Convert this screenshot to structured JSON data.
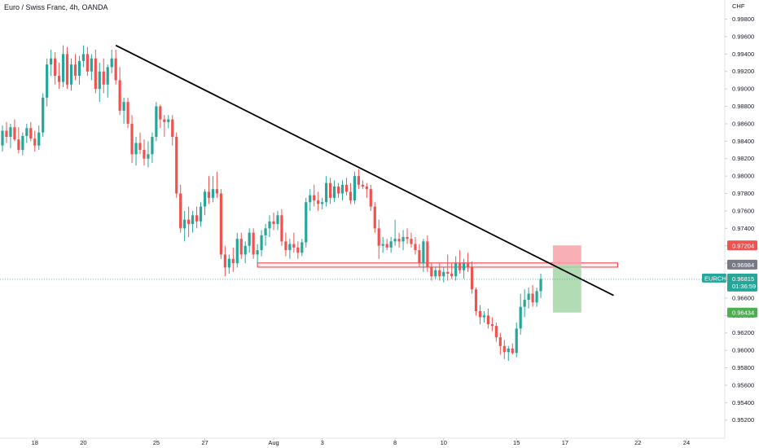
{
  "header": {
    "title": "Euro / Swiss Franc, 4h, OANDA"
  },
  "colors": {
    "up": "#26a69a",
    "down": "#ef5350",
    "trendline": "#000000",
    "zone": "#f23645",
    "stop": "#f7a1a8",
    "target": "#a5d6a7",
    "current": "#26a69a",
    "entry": "#787b86"
  },
  "chart_data": {
    "type": "candlestick",
    "title": "Euro / Swiss Franc, 4h, OANDA",
    "currency": "CHF",
    "symbol": "EURCHF",
    "ylim": [
      0.951,
      1.0002
    ],
    "xlim": [
      0,
      180
    ],
    "y_ticks": [
      "0.99800",
      "0.99600",
      "0.99400",
      "0.99200",
      "0.99000",
      "0.98800",
      "0.98600",
      "0.98400",
      "0.98200",
      "0.98000",
      "0.97800",
      "0.97600",
      "0.97400",
      "0.97200",
      "0.97000",
      "0.96800",
      "0.96600",
      "0.96400",
      "0.96200",
      "0.96000",
      "0.95800",
      "0.95600",
      "0.95400",
      "0.95200"
    ],
    "x_ticks": [
      {
        "label": "18",
        "x": 8
      },
      {
        "label": "20",
        "x": 20
      },
      {
        "label": "25",
        "x": 38
      },
      {
        "label": "27",
        "x": 50
      },
      {
        "label": "Aug",
        "x": 67
      },
      {
        "label": "3",
        "x": 79
      },
      {
        "label": "8",
        "x": 97
      },
      {
        "label": "10",
        "x": 109
      },
      {
        "label": "15",
        "x": 127
      },
      {
        "label": "17",
        "x": 139
      },
      {
        "label": "22",
        "x": 157
      },
      {
        "label": "24",
        "x": 169
      }
    ],
    "candles": [
      [
        0,
        0.9835,
        0.9858,
        0.9828,
        0.9852
      ],
      [
        1,
        0.9852,
        0.9862,
        0.9838,
        0.9845
      ],
      [
        2,
        0.9845,
        0.986,
        0.9832,
        0.9856
      ],
      [
        3,
        0.9856,
        0.9865,
        0.984,
        0.9842
      ],
      [
        4,
        0.9842,
        0.9856,
        0.9826,
        0.983
      ],
      [
        5,
        0.983,
        0.985,
        0.9824,
        0.9846
      ],
      [
        6,
        0.9846,
        0.986,
        0.9838,
        0.9855
      ],
      [
        7,
        0.9855,
        0.9862,
        0.984,
        0.9843
      ],
      [
        8,
        0.9843,
        0.9852,
        0.9828,
        0.9835
      ],
      [
        9,
        0.9835,
        0.9858,
        0.983,
        0.985
      ],
      [
        10,
        0.985,
        0.9895,
        0.9845,
        0.989
      ],
      [
        11,
        0.989,
        0.9935,
        0.988,
        0.9928
      ],
      [
        12,
        0.9928,
        0.9945,
        0.9915,
        0.9935
      ],
      [
        13,
        0.9935,
        0.9942,
        0.9905,
        0.9915
      ],
      [
        14,
        0.9915,
        0.993,
        0.99,
        0.9908
      ],
      [
        15,
        0.9908,
        0.995,
        0.9902,
        0.994
      ],
      [
        16,
        0.994,
        0.9948,
        0.99,
        0.9905
      ],
      [
        17,
        0.9905,
        0.9935,
        0.9898,
        0.9928
      ],
      [
        18,
        0.9928,
        0.994,
        0.991,
        0.9915
      ],
      [
        19,
        0.9915,
        0.9938,
        0.9905,
        0.9932
      ],
      [
        20,
        0.9932,
        0.995,
        0.9925,
        0.994
      ],
      [
        21,
        0.994,
        0.9948,
        0.9915,
        0.992
      ],
      [
        22,
        0.992,
        0.994,
        0.991,
        0.9935
      ],
      [
        23,
        0.9935,
        0.9945,
        0.9895,
        0.99
      ],
      [
        24,
        0.99,
        0.993,
        0.9885,
        0.992
      ],
      [
        25,
        0.992,
        0.9935,
        0.9895,
        0.9905
      ],
      [
        26,
        0.9905,
        0.9928,
        0.989,
        0.9925
      ],
      [
        27,
        0.9925,
        0.9945,
        0.9918,
        0.9935
      ],
      [
        28,
        0.9935,
        0.9945,
        0.9905,
        0.991
      ],
      [
        29,
        0.991,
        0.9925,
        0.987,
        0.9875
      ],
      [
        30,
        0.9875,
        0.989,
        0.986,
        0.9885
      ],
      [
        31,
        0.9885,
        0.989,
        0.9855,
        0.986
      ],
      [
        32,
        0.986,
        0.987,
        0.9815,
        0.9825
      ],
      [
        33,
        0.9825,
        0.9845,
        0.9812,
        0.9838
      ],
      [
        34,
        0.9838,
        0.985,
        0.9825,
        0.983
      ],
      [
        35,
        0.983,
        0.9842,
        0.9812,
        0.982
      ],
      [
        36,
        0.982,
        0.984,
        0.981,
        0.9825
      ],
      [
        37,
        0.9825,
        0.985,
        0.9815,
        0.9845
      ],
      [
        38,
        0.9845,
        0.9885,
        0.984,
        0.988
      ],
      [
        39,
        0.988,
        0.9882,
        0.9855,
        0.9865
      ],
      [
        40,
        0.9865,
        0.987,
        0.9845,
        0.9862
      ],
      [
        41,
        0.9862,
        0.987,
        0.9855,
        0.9865
      ],
      [
        42,
        0.9865,
        0.987,
        0.9835,
        0.9845
      ],
      [
        43,
        0.9845,
        0.985,
        0.9775,
        0.978
      ],
      [
        44,
        0.978,
        0.979,
        0.9735,
        0.974
      ],
      [
        45,
        0.974,
        0.976,
        0.9725,
        0.975
      ],
      [
        46,
        0.975,
        0.9765,
        0.973,
        0.9745
      ],
      [
        47,
        0.9745,
        0.976,
        0.9735,
        0.9755
      ],
      [
        48,
        0.9755,
        0.9765,
        0.974,
        0.9748
      ],
      [
        49,
        0.9748,
        0.977,
        0.9742,
        0.9765
      ],
      [
        50,
        0.9765,
        0.9785,
        0.9755,
        0.9782
      ],
      [
        51,
        0.9782,
        0.98,
        0.9768,
        0.9775
      ],
      [
        52,
        0.9775,
        0.98,
        0.977,
        0.9785
      ],
      [
        53,
        0.9785,
        0.9805,
        0.9775,
        0.978
      ],
      [
        54,
        0.978,
        0.9785,
        0.9705,
        0.971
      ],
      [
        55,
        0.971,
        0.972,
        0.9685,
        0.9695
      ],
      [
        56,
        0.9695,
        0.971,
        0.9688,
        0.9705
      ],
      [
        57,
        0.9705,
        0.9718,
        0.969,
        0.97
      ],
      [
        58,
        0.97,
        0.9735,
        0.9695,
        0.9728
      ],
      [
        59,
        0.9728,
        0.9735,
        0.9705,
        0.971
      ],
      [
        60,
        0.971,
        0.9725,
        0.97,
        0.972
      ],
      [
        61,
        0.972,
        0.974,
        0.9712,
        0.9735
      ],
      [
        62,
        0.9735,
        0.974,
        0.9705,
        0.971
      ],
      [
        63,
        0.971,
        0.9722,
        0.97,
        0.9715
      ],
      [
        64,
        0.9715,
        0.9738,
        0.9708,
        0.9732
      ],
      [
        65,
        0.9732,
        0.9745,
        0.972,
        0.974
      ],
      [
        66,
        0.974,
        0.9755,
        0.973,
        0.9748
      ],
      [
        67,
        0.9748,
        0.9758,
        0.9738,
        0.9745
      ],
      [
        68,
        0.9745,
        0.976,
        0.9738,
        0.9755
      ],
      [
        69,
        0.9755,
        0.9762,
        0.972,
        0.9725
      ],
      [
        70,
        0.9725,
        0.9735,
        0.9708,
        0.9715
      ],
      [
        71,
        0.9715,
        0.9728,
        0.9705,
        0.9722
      ],
      [
        72,
        0.9722,
        0.9735,
        0.9712,
        0.9718
      ],
      [
        73,
        0.9718,
        0.9725,
        0.9705,
        0.9712
      ],
      [
        74,
        0.9712,
        0.9728,
        0.9708,
        0.9724
      ],
      [
        75,
        0.9724,
        0.9775,
        0.9718,
        0.977
      ],
      [
        76,
        0.977,
        0.9785,
        0.976,
        0.9778
      ],
      [
        77,
        0.9778,
        0.979,
        0.9765,
        0.9772
      ],
      [
        78,
        0.9772,
        0.9782,
        0.976,
        0.9768
      ],
      [
        79,
        0.9768,
        0.9775,
        0.9762,
        0.977
      ],
      [
        80,
        0.977,
        0.98,
        0.9765,
        0.9792
      ],
      [
        81,
        0.9792,
        0.9798,
        0.9768,
        0.9775
      ],
      [
        82,
        0.9775,
        0.9795,
        0.977,
        0.9788
      ],
      [
        83,
        0.9788,
        0.9792,
        0.9775,
        0.978
      ],
      [
        84,
        0.978,
        0.9795,
        0.9772,
        0.979
      ],
      [
        85,
        0.979,
        0.9798,
        0.9778,
        0.9782
      ],
      [
        86,
        0.9782,
        0.9792,
        0.9768,
        0.9772
      ],
      [
        87,
        0.9772,
        0.9805,
        0.9768,
        0.98
      ],
      [
        88,
        0.98,
        0.9808,
        0.9785,
        0.979
      ],
      [
        89,
        0.979,
        0.9795,
        0.9785,
        0.9788
      ],
      [
        90,
        0.9788,
        0.9792,
        0.9775,
        0.9785
      ],
      [
        91,
        0.9785,
        0.979,
        0.976,
        0.9765
      ],
      [
        92,
        0.9765,
        0.977,
        0.9735,
        0.974
      ],
      [
        93,
        0.974,
        0.975,
        0.9705,
        0.972
      ],
      [
        94,
        0.972,
        0.973,
        0.9712,
        0.9722
      ],
      [
        95,
        0.9722,
        0.9728,
        0.9715,
        0.9718
      ],
      [
        96,
        0.9718,
        0.973,
        0.9712,
        0.9725
      ],
      [
        97,
        0.9725,
        0.975,
        0.972,
        0.9728
      ],
      [
        98,
        0.9728,
        0.9735,
        0.9718,
        0.9725
      ],
      [
        99,
        0.9725,
        0.9738,
        0.9715,
        0.973
      ],
      [
        100,
        0.973,
        0.974,
        0.9722,
        0.9728
      ],
      [
        101,
        0.9728,
        0.9735,
        0.9718,
        0.9722
      ],
      [
        102,
        0.9722,
        0.973,
        0.971,
        0.9715
      ],
      [
        103,
        0.9715,
        0.9722,
        0.9695,
        0.97
      ],
      [
        104,
        0.97,
        0.9728,
        0.969,
        0.9725
      ],
      [
        105,
        0.9725,
        0.9732,
        0.969,
        0.9695
      ],
      [
        106,
        0.9695,
        0.97,
        0.968,
        0.9685
      ],
      [
        107,
        0.9685,
        0.9695,
        0.9682,
        0.9692
      ],
      [
        108,
        0.9692,
        0.97,
        0.968,
        0.9685
      ],
      [
        109,
        0.9685,
        0.9695,
        0.9678,
        0.969
      ],
      [
        110,
        0.969,
        0.971,
        0.968,
        0.9688
      ],
      [
        111,
        0.9688,
        0.97,
        0.9682,
        0.9685
      ],
      [
        112,
        0.9685,
        0.9708,
        0.968,
        0.97
      ],
      [
        113,
        0.97,
        0.9715,
        0.9688,
        0.9692
      ],
      [
        114,
        0.9692,
        0.9705,
        0.9682,
        0.97
      ],
      [
        115,
        0.97,
        0.9712,
        0.969,
        0.9695
      ],
      [
        116,
        0.9695,
        0.9702,
        0.9665,
        0.967
      ],
      [
        117,
        0.967,
        0.9672,
        0.964,
        0.9645
      ],
      [
        118,
        0.9645,
        0.9652,
        0.963,
        0.9638
      ],
      [
        119,
        0.9638,
        0.9645,
        0.9632,
        0.964
      ],
      [
        120,
        0.964,
        0.9648,
        0.9625,
        0.963
      ],
      [
        121,
        0.963,
        0.9638,
        0.9622,
        0.9628
      ],
      [
        122,
        0.9628,
        0.9632,
        0.961,
        0.9615
      ],
      [
        123,
        0.9615,
        0.962,
        0.9595,
        0.9605
      ],
      [
        124,
        0.9605,
        0.9612,
        0.959,
        0.9598
      ],
      [
        125,
        0.9598,
        0.9605,
        0.9588,
        0.9602
      ],
      [
        126,
        0.9602,
        0.9608,
        0.9595,
        0.9597
      ],
      [
        127,
        0.9597,
        0.9632,
        0.9592,
        0.9625
      ],
      [
        128,
        0.9625,
        0.9665,
        0.9618,
        0.965
      ],
      [
        129,
        0.965,
        0.967,
        0.9638,
        0.9658
      ],
      [
        130,
        0.9658,
        0.9672,
        0.9648,
        0.9665
      ],
      [
        131,
        0.9665,
        0.9675,
        0.965,
        0.9655
      ],
      [
        132,
        0.9655,
        0.9672,
        0.965,
        0.9668
      ],
      [
        133,
        0.9668,
        0.9688,
        0.966,
        0.9682
      ]
    ],
    "trendline": [
      [
        28,
        0.995
      ],
      [
        151,
        0.9663
      ]
    ],
    "zone": {
      "low": 0.96955,
      "high": 0.97003,
      "x_start": 63,
      "x_end": 152
    },
    "position": {
      "entry": 0.96984,
      "stop": 0.97204,
      "target": 0.96434,
      "x_start": 136,
      "x_end": 143
    },
    "price_tags": {
      "stop": "0.97204",
      "entry": "0.96984",
      "current_symbol": "EURCHF",
      "current_price": "0.96815",
      "countdown": "01:36:59",
      "target": "0.96434"
    },
    "current_price_value": 0.96815
  }
}
